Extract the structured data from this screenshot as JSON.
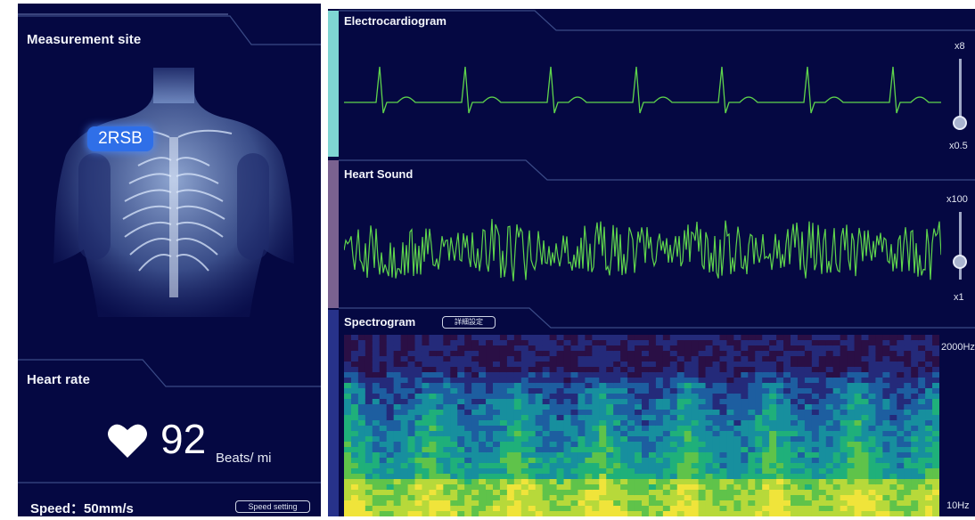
{
  "left_panel": {
    "measurement_title": "Measurement site",
    "site_badge": "2RSB",
    "heart_rate_title": "Heart rate",
    "heart_rate_value": "92",
    "heart_rate_unit": "Beats/ mi",
    "speed_label": "Speed：50mm/s",
    "speed_button": "Speed setting"
  },
  "ecg_panel": {
    "title": "Electrocardiogram",
    "scale_max": "x8",
    "scale_min": "x0.5",
    "accent_color": "#7fd6d3"
  },
  "heart_sound_panel": {
    "title": "Heart Sound",
    "scale_max": "x100",
    "scale_min": "x1",
    "accent_color": "#7a6290"
  },
  "spectrogram_panel": {
    "title": "Spectrogram",
    "settings_button": "詳細設定",
    "freq_max": "2000Hz",
    "freq_min": "10Hz",
    "accent_color": "#27328a"
  },
  "colors": {
    "background": "#050842",
    "waveform": "#5fd44c",
    "heart_icon": "#ffffff"
  },
  "icons": [
    "heart-icon",
    "slider-knob",
    "body-illustration"
  ]
}
